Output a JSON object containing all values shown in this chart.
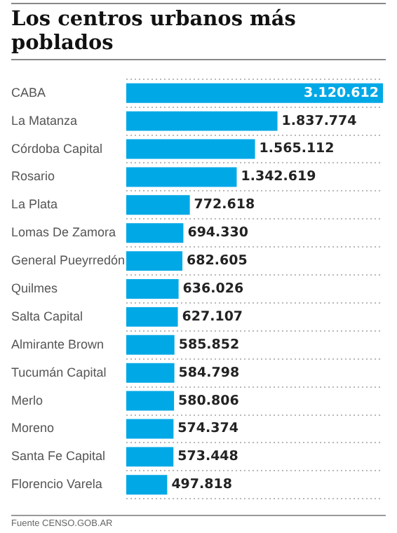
{
  "chart_data": {
    "type": "bar",
    "orientation": "horizontal",
    "title": "Los centros urbanos más poblados",
    "categories": [
      "CABA",
      "La Matanza",
      "Córdoba Capital",
      "Rosario",
      "La Plata",
      "Lomas De Zamora",
      "General Pueyrredón",
      "Quilmes",
      "Salta Capital",
      "Almirante Brown",
      "Tucumán Capital",
      "Merlo",
      "Moreno",
      "Santa Fe Capital",
      "Florencio Varela"
    ],
    "values": [
      3120612,
      1837774,
      1565112,
      1342619,
      772618,
      694330,
      682605,
      636026,
      627107,
      585852,
      584798,
      580806,
      574374,
      573448,
      497818
    ],
    "value_labels": [
      "3.120.612",
      "1.837.774",
      "1.565.112",
      "1.342.619",
      "772.618",
      "694.330",
      "682.605",
      "636.026",
      "627.107",
      "585.852",
      "584.798",
      "580.806",
      "574.374",
      "573.448",
      "497.818"
    ],
    "color": "#00a8e6",
    "grid": "y",
    "legend": false,
    "annotations": [
      "Fuente CENSO.GOB.AR"
    ]
  }
}
